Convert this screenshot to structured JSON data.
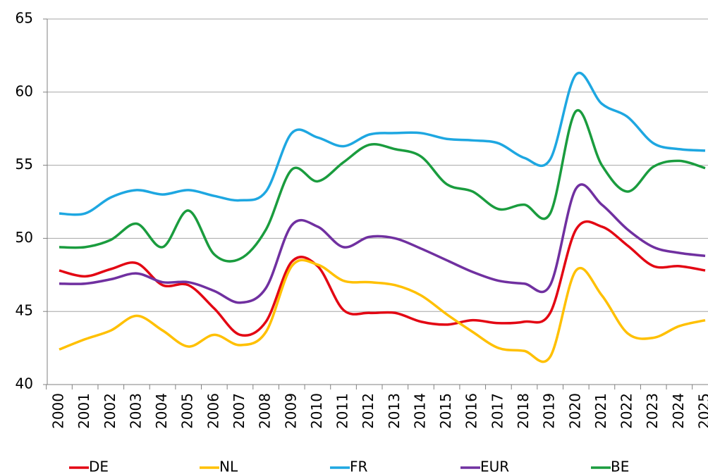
{
  "chart_data": {
    "type": "line",
    "categories": [
      "2000",
      "2001",
      "2002",
      "2003",
      "2004",
      "2005",
      "2006",
      "2007",
      "2008",
      "2009",
      "2010",
      "2011",
      "2012",
      "2013",
      "2014",
      "2015",
      "2016",
      "2017",
      "2018",
      "2019",
      "2020",
      "2021",
      "2022",
      "2023",
      "2024",
      "2025"
    ],
    "series": [
      {
        "name": "DE",
        "color": "#e30613",
        "values": [
          47.8,
          47.4,
          47.9,
          48.3,
          46.8,
          46.8,
          45.2,
          43.4,
          44.3,
          48.4,
          48.1,
          45.1,
          44.9,
          44.9,
          44.3,
          44.1,
          44.4,
          44.2,
          44.3,
          44.9,
          50.6,
          50.8,
          49.5,
          48.1,
          48.1,
          47.8
        ]
      },
      {
        "name": "NL",
        "color": "#ffc000",
        "values": [
          42.4,
          43.1,
          43.7,
          44.7,
          43.7,
          42.6,
          43.4,
          42.7,
          43.6,
          48.1,
          48.2,
          47.1,
          47.0,
          46.8,
          46.1,
          44.8,
          43.6,
          42.5,
          42.3,
          41.9,
          47.8,
          46.1,
          43.5,
          43.2,
          44.0,
          44.4
        ]
      },
      {
        "name": "FR",
        "color": "#1ea7e1",
        "values": [
          51.7,
          51.7,
          52.8,
          53.3,
          53.0,
          53.3,
          52.9,
          52.6,
          53.2,
          57.2,
          56.9,
          56.3,
          57.1,
          57.2,
          57.2,
          56.8,
          56.7,
          56.5,
          55.5,
          55.4,
          61.2,
          59.2,
          58.3,
          56.5,
          56.1,
          56.0
        ]
      },
      {
        "name": "EUR",
        "color": "#7030a0",
        "values": [
          46.9,
          46.9,
          47.2,
          47.6,
          47.0,
          47.0,
          46.4,
          45.6,
          46.6,
          50.9,
          50.8,
          49.4,
          50.1,
          50.0,
          49.3,
          48.5,
          47.7,
          47.1,
          46.9,
          46.8,
          53.4,
          52.3,
          50.6,
          49.4,
          49.0,
          48.8
        ]
      },
      {
        "name": "BE",
        "color": "#1a9c3e",
        "values": [
          49.4,
          49.4,
          49.9,
          51.0,
          49.4,
          51.9,
          48.9,
          48.6,
          50.6,
          54.7,
          53.9,
          55.2,
          56.4,
          56.1,
          55.6,
          53.7,
          53.2,
          52.0,
          52.3,
          51.7,
          58.7,
          55.0,
          53.2,
          54.9,
          55.3,
          54.8
        ]
      }
    ],
    "ylim": [
      40,
      65
    ],
    "yticks": [
      40,
      45,
      50,
      55,
      60,
      65
    ],
    "grid": true,
    "smooth": true,
    "legend": "bottom"
  }
}
